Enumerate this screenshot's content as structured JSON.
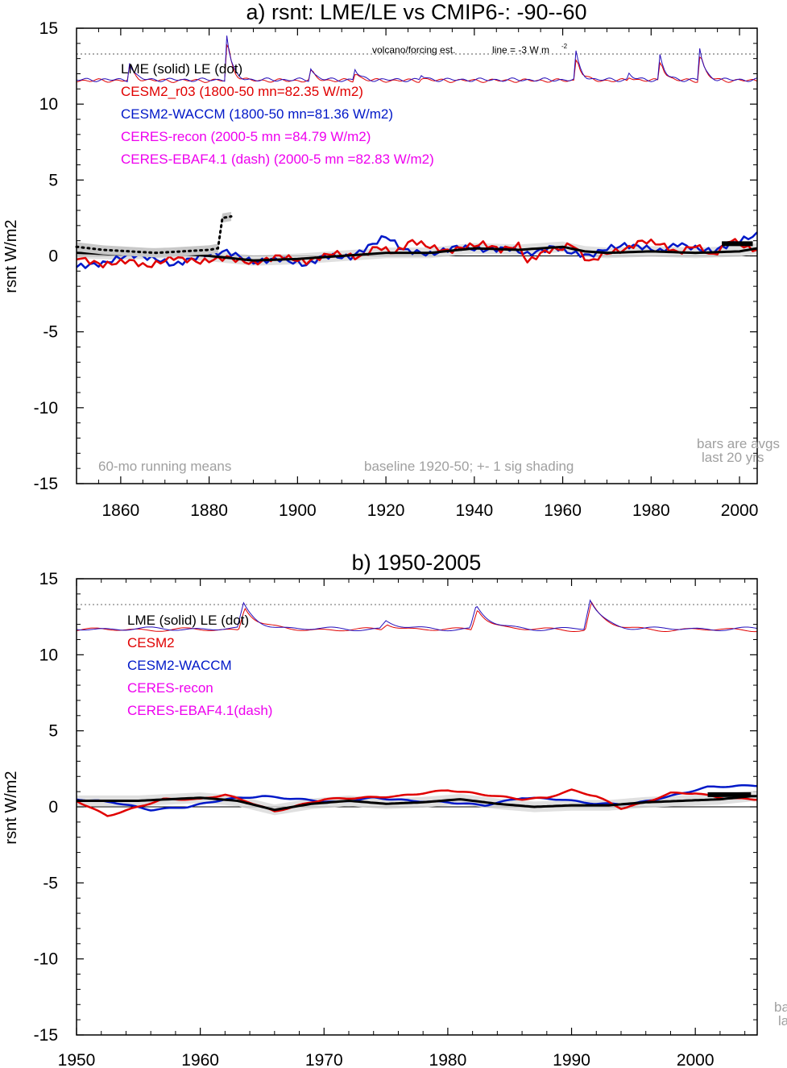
{
  "chart_data": [
    {
      "type": "line",
      "title": "a) rsnt: LME/LE vs CMIP6-: -90--60",
      "ylabel": "rsnt W/m2",
      "xlim": [
        1850,
        2004
      ],
      "ylim": [
        -15,
        15
      ],
      "xticks": [
        1860,
        1880,
        1900,
        1920,
        1940,
        1960,
        1980,
        2000
      ],
      "yticks": [
        -15,
        -10,
        -5,
        0,
        5,
        10,
        15
      ],
      "grid": false,
      "legend_placement": "top-left",
      "legend": [
        {
          "label": "LME (solid)   LE (dot)",
          "color": "#000000"
        },
        {
          "label": "CESM2_r03 (1800-50 mn=82.35 W/m2)",
          "color": "#e00000"
        },
        {
          "label": "CESM2-WACCM (1800-50 mn=81.36 W/m2)",
          "color": "#0018c8"
        },
        {
          "label": "CERES-recon (2000-5 mn =84.79 W/m2)",
          "color": "#ee00ee"
        },
        {
          "label": "CERES-EBAF4.1 (dash) (2000-5 mn =82.83 W/m2)",
          "color": "#ee00ee"
        }
      ],
      "annotations": {
        "volcano": "volcano/forcing est.",
        "line": "line = -3 W m",
        "running": "60-mo running means",
        "baseline": "baseline 1920-50; +- 1 sig shading",
        "bars1": "bars are avgs",
        "bars2": "last 20 yrs"
      },
      "reference_line_y": 13.3,
      "forcing_baseline_y": 11.6,
      "forcing_peaks": [
        [
          1862,
          12.8
        ],
        [
          1884,
          14.6
        ],
        [
          1903,
          12.4
        ],
        [
          1913,
          12.3
        ],
        [
          1928,
          11.9
        ],
        [
          1963,
          13.4
        ],
        [
          1975,
          12.0
        ],
        [
          1982,
          13.2
        ],
        [
          1991,
          13.7
        ]
      ],
      "bars": [
        {
          "x0": 1996,
          "x1": 2003,
          "y": 0.8
        }
      ],
      "le_dotted_points": [
        [
          1850,
          0.6
        ],
        [
          1856,
          0.4
        ],
        [
          1862,
          0.3
        ],
        [
          1868,
          0.2
        ],
        [
          1874,
          0.3
        ],
        [
          1880,
          0.4
        ],
        [
          1882,
          0.5
        ],
        [
          1883,
          2.5
        ],
        [
          1885,
          2.6
        ]
      ],
      "series": [
        {
          "name": "LME",
          "color": "#000000",
          "width": 3,
          "points": [
            [
              1850,
              0.2
            ],
            [
              1860,
              0.1
            ],
            [
              1870,
              0.2
            ],
            [
              1880,
              0.0
            ],
            [
              1890,
              -0.3
            ],
            [
              1900,
              -0.2
            ],
            [
              1910,
              0.0
            ],
            [
              1920,
              0.2
            ],
            [
              1930,
              0.2
            ],
            [
              1940,
              0.5
            ],
            [
              1950,
              0.4
            ],
            [
              1960,
              0.6
            ],
            [
              1965,
              0.3
            ],
            [
              1970,
              0.2
            ],
            [
              1980,
              0.3
            ],
            [
              1990,
              0.2
            ],
            [
              2000,
              0.3
            ],
            [
              2004,
              0.5
            ]
          ]
        },
        {
          "name": "CESM2_r03",
          "color": "#e00000",
          "width": 2.5,
          "points": [
            [
              1850,
              -0.1
            ],
            [
              1856,
              -0.6
            ],
            [
              1862,
              -0.3
            ],
            [
              1866,
              -0.7
            ],
            [
              1872,
              -0.1
            ],
            [
              1878,
              -0.4
            ],
            [
              1884,
              -0.1
            ],
            [
              1890,
              -0.5
            ],
            [
              1896,
              0.0
            ],
            [
              1902,
              -0.4
            ],
            [
              1908,
              0.2
            ],
            [
              1914,
              -0.1
            ],
            [
              1918,
              0.6
            ],
            [
              1922,
              0.2
            ],
            [
              1926,
              1.0
            ],
            [
              1930,
              0.6
            ],
            [
              1934,
              0.3
            ],
            [
              1938,
              0.6
            ],
            [
              1942,
              0.8
            ],
            [
              1946,
              0.4
            ],
            [
              1950,
              0.7
            ],
            [
              1952,
              -0.4
            ],
            [
              1956,
              0.3
            ],
            [
              1960,
              0.5
            ],
            [
              1962,
              0.8
            ],
            [
              1966,
              -0.4
            ],
            [
              1970,
              0.2
            ],
            [
              1974,
              0.4
            ],
            [
              1978,
              1.0
            ],
            [
              1982,
              0.8
            ],
            [
              1986,
              0.2
            ],
            [
              1990,
              0.7
            ],
            [
              1994,
              0.0
            ],
            [
              1998,
              1.1
            ],
            [
              2002,
              0.5
            ],
            [
              2004,
              0.4
            ]
          ]
        },
        {
          "name": "CESM2-WACCM",
          "color": "#0018c8",
          "width": 2.5,
          "points": [
            [
              1850,
              -0.7
            ],
            [
              1856,
              -0.5
            ],
            [
              1862,
              0.1
            ],
            [
              1868,
              -0.2
            ],
            [
              1872,
              -0.6
            ],
            [
              1878,
              0.0
            ],
            [
              1884,
              0.3
            ],
            [
              1890,
              -0.4
            ],
            [
              1896,
              -0.2
            ],
            [
              1902,
              -0.6
            ],
            [
              1906,
              0.0
            ],
            [
              1912,
              -0.1
            ],
            [
              1916,
              0.6
            ],
            [
              1920,
              1.3
            ],
            [
              1924,
              0.4
            ],
            [
              1930,
              0.1
            ],
            [
              1936,
              0.6
            ],
            [
              1942,
              0.4
            ],
            [
              1948,
              0.5
            ],
            [
              1952,
              0.1
            ],
            [
              1958,
              0.6
            ],
            [
              1962,
              0.2
            ],
            [
              1966,
              0.0
            ],
            [
              1970,
              0.5
            ],
            [
              1974,
              0.7
            ],
            [
              1978,
              0.6
            ],
            [
              1982,
              0.3
            ],
            [
              1986,
              0.8
            ],
            [
              1990,
              0.5
            ],
            [
              1994,
              0.3
            ],
            [
              1998,
              0.8
            ],
            [
              2002,
              1.2
            ],
            [
              2004,
              1.4
            ]
          ]
        }
      ]
    },
    {
      "type": "line",
      "title": "b) 1950-2005",
      "ylabel": "rsnt W/m2",
      "xlim": [
        1950,
        2005
      ],
      "ylim": [
        -15,
        15
      ],
      "xticks": [
        1950,
        1960,
        1970,
        1980,
        1990,
        2000
      ],
      "yticks": [
        -15,
        -10,
        -5,
        0,
        5,
        10,
        15
      ],
      "grid": false,
      "legend_placement": "top-left",
      "legend": [
        {
          "label": "LME (solid)      LE (dot)",
          "color": "#000000"
        },
        {
          "label": "CESM2",
          "color": "#e00000"
        },
        {
          "label": "CESM2-WACCM",
          "color": "#0018c8"
        },
        {
          "label": "CERES-recon",
          "color": "#ee00ee"
        },
        {
          "label": "CERES-EBAF4.1(dash)",
          "color": "#ee00ee"
        }
      ],
      "annotations": {
        "bars1": "ba",
        "bars2": "la"
      },
      "reference_line_y": 13.3,
      "forcing_baseline_y": 11.7,
      "forcing_peaks": [
        [
          1963.5,
          13.3
        ],
        [
          1975,
          12.2
        ],
        [
          1982.3,
          13.2
        ],
        [
          1991.5,
          13.6
        ]
      ],
      "bars": [
        {
          "x0": 2001,
          "x1": 2004.5,
          "y": 0.8
        }
      ],
      "le_dotted_points": [],
      "series": [
        {
          "name": "LME",
          "color": "#000000",
          "width": 3,
          "points": [
            [
              1950,
              0.4
            ],
            [
              1955,
              0.4
            ],
            [
              1960,
              0.6
            ],
            [
              1963,
              0.4
            ],
            [
              1966,
              -0.2
            ],
            [
              1969,
              0.2
            ],
            [
              1972,
              0.4
            ],
            [
              1975,
              0.2
            ],
            [
              1978,
              0.3
            ],
            [
              1981,
              0.5
            ],
            [
              1984,
              0.2
            ],
            [
              1987,
              0.0
            ],
            [
              1990,
              0.1
            ],
            [
              1993,
              0.1
            ],
            [
              1996,
              0.3
            ],
            [
              1999,
              0.4
            ],
            [
              2002,
              0.5
            ],
            [
              2004.5,
              0.7
            ]
          ]
        },
        {
          "name": "CESM2",
          "color": "#e00000",
          "width": 2.5,
          "points": [
            [
              1950,
              0.4
            ],
            [
              1952.5,
              -0.6
            ],
            [
              1955,
              0.0
            ],
            [
              1957,
              0.5
            ],
            [
              1960,
              0.5
            ],
            [
              1962,
              0.8
            ],
            [
              1964,
              0.3
            ],
            [
              1966,
              -0.3
            ],
            [
              1968,
              0.1
            ],
            [
              1970,
              0.5
            ],
            [
              1973,
              0.6
            ],
            [
              1976,
              0.7
            ],
            [
              1980,
              1.1
            ],
            [
              1983,
              0.8
            ],
            [
              1986,
              0.5
            ],
            [
              1988,
              0.6
            ],
            [
              1990,
              1.1
            ],
            [
              1992,
              0.7
            ],
            [
              1994,
              -0.1
            ],
            [
              1996,
              0.3
            ],
            [
              1998,
              0.9
            ],
            [
              2000,
              0.9
            ],
            [
              2002,
              0.6
            ],
            [
              2004.5,
              0.5
            ]
          ]
        },
        {
          "name": "CESM2-WACCM",
          "color": "#0018c8",
          "width": 2.5,
          "points": [
            [
              1950,
              0.5
            ],
            [
              1953,
              0.3
            ],
            [
              1956,
              -0.2
            ],
            [
              1959,
              0.0
            ],
            [
              1962,
              0.5
            ],
            [
              1965,
              0.7
            ],
            [
              1968,
              0.5
            ],
            [
              1971,
              0.3
            ],
            [
              1974,
              0.6
            ],
            [
              1977,
              0.4
            ],
            [
              1980,
              0.3
            ],
            [
              1983,
              0.1
            ],
            [
              1986,
              0.6
            ],
            [
              1989,
              0.5
            ],
            [
              1992,
              0.2
            ],
            [
              1995,
              0.2
            ],
            [
              1998,
              0.7
            ],
            [
              2001,
              1.3
            ],
            [
              2004.5,
              1.4
            ]
          ]
        }
      ]
    }
  ]
}
